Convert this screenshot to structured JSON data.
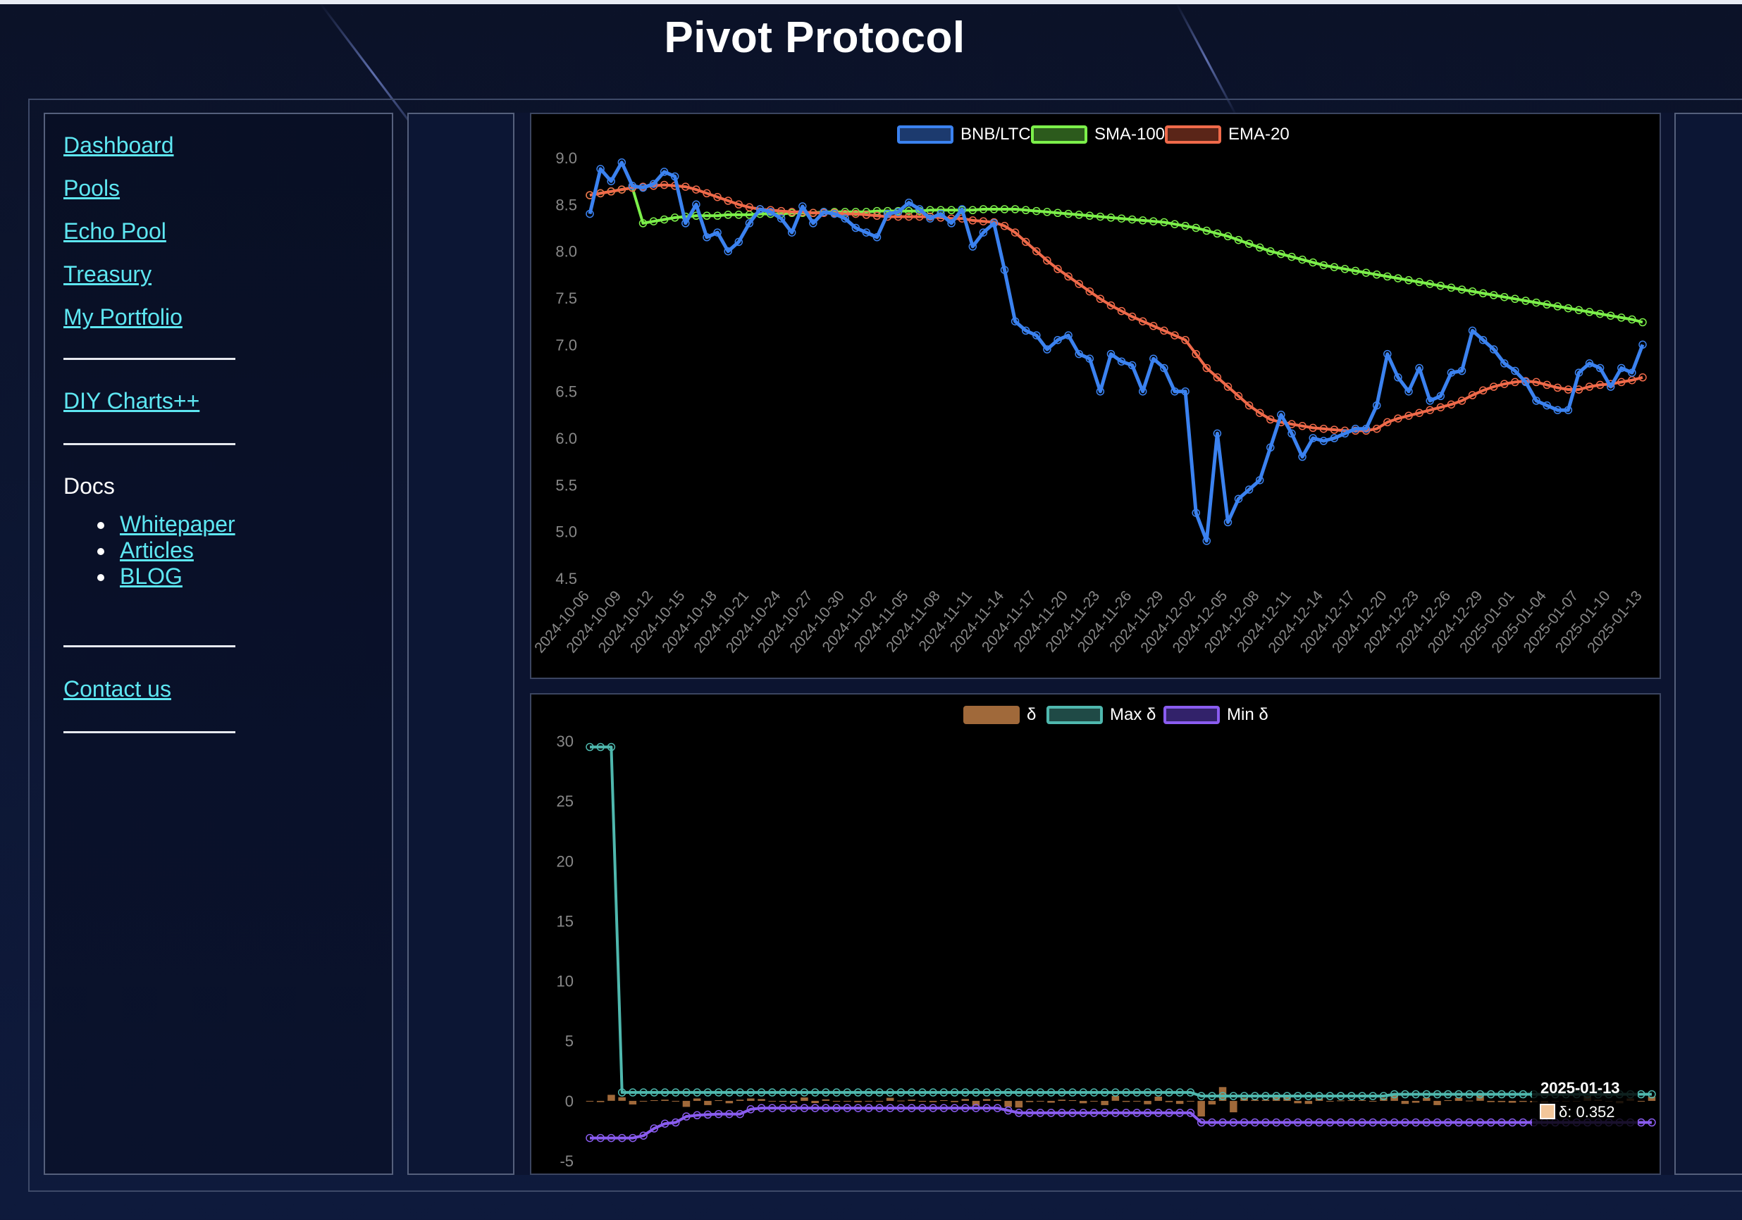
{
  "app": {
    "title": "Pivot Protocol"
  },
  "sidebar": {
    "links": [
      {
        "label": "Dashboard"
      },
      {
        "label": "Pools"
      },
      {
        "label": "Echo Pool"
      },
      {
        "label": "Treasury"
      },
      {
        "label": "My Portfolio"
      }
    ],
    "diy_charts": "DIY Charts++",
    "docs_label": "Docs",
    "docs_links": [
      {
        "label": "Whitepaper"
      },
      {
        "label": "Articles"
      },
      {
        "label": "BLOG"
      }
    ],
    "contact": "Contact us"
  },
  "colors": {
    "bnb_ltc": "#3b82f0",
    "sma": "#7cf04a",
    "ema": "#f06a4a",
    "delta": "#a0693a",
    "max_delta": "#4fb8ae",
    "min_delta": "#8a5cf0",
    "link": "#5ee7f2"
  },
  "chart_data": [
    {
      "type": "line",
      "legend_position": "top-center",
      "grid": false,
      "ylim": [
        4.5,
        9.0
      ],
      "yticks": [
        "9.0",
        "8.5",
        "8.0",
        "7.5",
        "7.0",
        "6.5",
        "6.0",
        "5.5",
        "5.0",
        "4.5"
      ],
      "xticks": [
        "2024-10-06",
        "2024-10-09",
        "2024-10-12",
        "2024-10-15",
        "2024-10-18",
        "2024-10-21",
        "2024-10-24",
        "2024-10-27",
        "2024-10-30",
        "2024-11-02",
        "2024-11-05",
        "2024-11-08",
        "2024-11-11",
        "2024-11-14",
        "2024-11-17",
        "2024-11-20",
        "2024-11-23",
        "2024-11-26",
        "2024-11-29",
        "2024-12-02",
        "2024-12-05",
        "2024-12-08",
        "2024-12-11",
        "2024-12-14",
        "2024-12-17",
        "2024-12-20",
        "2024-12-23",
        "2024-12-26",
        "2024-12-29",
        "2025-01-01",
        "2025-01-04",
        "2025-01-07",
        "2025-01-10",
        "2025-01-13"
      ],
      "series": [
        {
          "name": "BNB/LTC",
          "values": [
            8.4,
            8.88,
            8.75,
            8.95,
            8.7,
            8.68,
            8.72,
            8.85,
            8.8,
            8.3,
            8.5,
            8.15,
            8.2,
            8.0,
            8.1,
            8.3,
            8.45,
            8.42,
            8.35,
            8.2,
            8.48,
            8.3,
            8.42,
            8.4,
            8.35,
            8.25,
            8.2,
            8.15,
            8.4,
            8.42,
            8.52,
            8.45,
            8.35,
            8.4,
            8.3,
            8.45,
            8.05,
            8.2,
            8.3,
            7.8,
            7.25,
            7.15,
            7.1,
            6.95,
            7.05,
            7.1,
            6.9,
            6.85,
            6.5,
            6.9,
            6.82,
            6.78,
            6.5,
            6.85,
            6.75,
            6.5,
            6.5,
            5.2,
            4.9,
            6.05,
            5.1,
            5.35,
            5.45,
            5.55,
            5.9,
            6.25,
            6.05,
            5.8,
            6.0,
            5.97,
            6.0,
            6.05,
            6.1,
            6.1,
            6.35,
            6.9,
            6.65,
            6.5,
            6.75,
            6.4,
            6.45,
            6.7,
            6.72,
            7.15,
            7.05,
            6.95,
            6.8,
            6.72,
            6.6,
            6.4,
            6.35,
            6.3,
            6.3,
            6.7,
            6.8,
            6.75,
            6.55,
            6.75,
            6.7,
            7.0
          ]
        },
        {
          "name": "SMA-100",
          "values": [
            8.6,
            8.62,
            8.64,
            8.66,
            8.68,
            8.3,
            8.32,
            8.34,
            8.36,
            8.37,
            8.38,
            8.38,
            8.38,
            8.39,
            8.39,
            8.39,
            8.4,
            8.4,
            8.4,
            8.41,
            8.41,
            8.41,
            8.42,
            8.42,
            8.42,
            8.42,
            8.42,
            8.43,
            8.43,
            8.43,
            8.43,
            8.43,
            8.44,
            8.44,
            8.44,
            8.44,
            8.44,
            8.45,
            8.45,
            8.45,
            8.45,
            8.44,
            8.43,
            8.42,
            8.41,
            8.4,
            8.39,
            8.38,
            8.37,
            8.36,
            8.35,
            8.34,
            8.33,
            8.32,
            8.31,
            8.29,
            8.27,
            8.25,
            8.22,
            8.19,
            8.16,
            8.12,
            8.08,
            8.04,
            8.0,
            7.97,
            7.94,
            7.91,
            7.88,
            7.85,
            7.83,
            7.81,
            7.79,
            7.77,
            7.75,
            7.73,
            7.71,
            7.69,
            7.67,
            7.65,
            7.63,
            7.61,
            7.59,
            7.57,
            7.55,
            7.53,
            7.51,
            7.49,
            7.47,
            7.45,
            7.43,
            7.41,
            7.39,
            7.37,
            7.35,
            7.33,
            7.31,
            7.29,
            7.27,
            7.24
          ]
        },
        {
          "name": "EMA-20",
          "values": [
            8.6,
            8.62,
            8.64,
            8.66,
            8.68,
            8.69,
            8.7,
            8.71,
            8.7,
            8.69,
            8.66,
            8.62,
            8.58,
            8.54,
            8.5,
            8.47,
            8.45,
            8.44,
            8.43,
            8.42,
            8.42,
            8.41,
            8.41,
            8.41,
            8.4,
            8.4,
            8.39,
            8.38,
            8.37,
            8.37,
            8.37,
            8.37,
            8.37,
            8.36,
            8.35,
            8.35,
            8.33,
            8.32,
            8.31,
            8.27,
            8.2,
            8.1,
            8.0,
            7.9,
            7.81,
            7.73,
            7.65,
            7.57,
            7.49,
            7.42,
            7.36,
            7.3,
            7.25,
            7.2,
            7.15,
            7.1,
            7.05,
            6.9,
            6.75,
            6.65,
            6.55,
            6.45,
            6.35,
            6.27,
            6.2,
            6.17,
            6.15,
            6.13,
            6.11,
            6.1,
            6.09,
            6.08,
            6.08,
            6.08,
            6.1,
            6.17,
            6.21,
            6.24,
            6.27,
            6.3,
            6.33,
            6.36,
            6.4,
            6.46,
            6.51,
            6.55,
            6.58,
            6.6,
            6.61,
            6.6,
            6.57,
            6.54,
            6.52,
            6.52,
            6.55,
            6.57,
            6.58,
            6.6,
            6.62,
            6.65
          ]
        }
      ]
    },
    {
      "type": "bar",
      "legend_position": "top-center",
      "grid": false,
      "ylim": [
        -5,
        30
      ],
      "yticks": [
        "30",
        "25",
        "20",
        "15",
        "10",
        "5",
        "0",
        "-5"
      ],
      "series": [
        {
          "name": "δ",
          "type": "bar",
          "values": [
            0.0,
            -0.1,
            0.5,
            0.3,
            -0.3,
            0.0,
            0.05,
            0.1,
            -0.05,
            -0.5,
            0.2,
            -0.35,
            0.05,
            -0.2,
            0.1,
            0.2,
            0.15,
            -0.03,
            -0.07,
            -0.15,
            0.28,
            -0.18,
            0.12,
            -0.02,
            -0.05,
            -0.1,
            -0.05,
            -0.05,
            0.25,
            0.02,
            0.1,
            -0.07,
            -0.1,
            0.05,
            -0.1,
            0.15,
            -0.4,
            0.15,
            0.1,
            -0.5,
            -0.55,
            -0.1,
            -0.05,
            -0.15,
            0.1,
            0.05,
            -0.2,
            -0.05,
            -0.35,
            0.4,
            -0.08,
            -0.04,
            -0.28,
            0.35,
            -0.1,
            -0.25,
            0.0,
            -1.3,
            -0.3,
            1.15,
            -0.95,
            0.25,
            0.1,
            0.1,
            0.35,
            0.35,
            -0.2,
            -0.25,
            0.2,
            -0.03,
            0.03,
            0.05,
            0.05,
            0.0,
            0.25,
            0.55,
            -0.25,
            -0.15,
            0.25,
            -0.35,
            0.05,
            0.25,
            0.02,
            0.43,
            -0.1,
            -0.1,
            -0.15,
            -0.08,
            -0.12,
            -0.2,
            -0.05,
            -0.05,
            0.0,
            0.4,
            0.1,
            -0.05,
            -0.2,
            0.2,
            -0.05,
            0.352
          ]
        },
        {
          "name": "Max δ",
          "type": "line",
          "values": [
            29.5,
            29.5,
            29.5,
            0.7,
            0.7,
            0.7,
            0.7,
            0.7,
            0.7,
            0.7,
            0.7,
            0.7,
            0.7,
            0.7,
            0.7,
            0.7,
            0.7,
            0.7,
            0.7,
            0.7,
            0.7,
            0.7,
            0.7,
            0.7,
            0.7,
            0.7,
            0.7,
            0.7,
            0.7,
            0.7,
            0.7,
            0.7,
            0.7,
            0.7,
            0.7,
            0.7,
            0.7,
            0.7,
            0.7,
            0.7,
            0.7,
            0.7,
            0.7,
            0.7,
            0.7,
            0.7,
            0.7,
            0.7,
            0.7,
            0.7,
            0.7,
            0.7,
            0.7,
            0.7,
            0.7,
            0.7,
            0.7,
            0.4,
            0.4,
            0.4,
            0.4,
            0.4,
            0.4,
            0.4,
            0.4,
            0.4,
            0.4,
            0.4,
            0.4,
            0.4,
            0.4,
            0.4,
            0.4,
            0.4,
            0.4,
            0.55,
            0.55,
            0.55,
            0.55,
            0.55,
            0.55,
            0.55,
            0.55,
            0.55,
            0.55,
            0.55,
            0.55,
            0.55,
            0.55,
            0.55,
            0.55,
            0.55,
            0.55,
            0.55,
            0.55,
            0.55,
            0.55,
            0.55,
            0.55,
            0.55
          ]
        },
        {
          "name": "Min δ",
          "type": "line",
          "values": [
            -3.1,
            -3.1,
            -3.1,
            -3.1,
            -3.1,
            -2.9,
            -2.3,
            -1.9,
            -1.8,
            -1.3,
            -1.2,
            -1.15,
            -1.1,
            -1.1,
            -1.1,
            -0.7,
            -0.6,
            -0.6,
            -0.6,
            -0.6,
            -0.6,
            -0.6,
            -0.6,
            -0.6,
            -0.6,
            -0.6,
            -0.6,
            -0.6,
            -0.6,
            -0.6,
            -0.6,
            -0.6,
            -0.6,
            -0.6,
            -0.6,
            -0.6,
            -0.6,
            -0.6,
            -0.6,
            -0.8,
            -1.0,
            -1.0,
            -1.0,
            -1.0,
            -1.0,
            -1.0,
            -1.0,
            -1.0,
            -1.0,
            -1.0,
            -1.0,
            -1.0,
            -1.0,
            -1.0,
            -1.0,
            -1.0,
            -1.0,
            -1.8,
            -1.8,
            -1.8,
            -1.8,
            -1.8,
            -1.8,
            -1.8,
            -1.8,
            -1.8,
            -1.8,
            -1.8,
            -1.8,
            -1.8,
            -1.8,
            -1.8,
            -1.8,
            -1.8,
            -1.8,
            -1.8,
            -1.8,
            -1.8,
            -1.8,
            -1.8,
            -1.8,
            -1.8,
            -1.8,
            -1.8,
            -1.8,
            -1.8,
            -1.8,
            -1.8,
            -1.8,
            -1.8,
            -1.8,
            -1.8,
            -1.8,
            -1.8,
            -1.8,
            -1.8,
            -1.8,
            -1.8,
            -1.8,
            -1.8
          ]
        }
      ],
      "tooltip": {
        "title": "2025-01-13",
        "label": "δ: 0.352"
      }
    }
  ]
}
